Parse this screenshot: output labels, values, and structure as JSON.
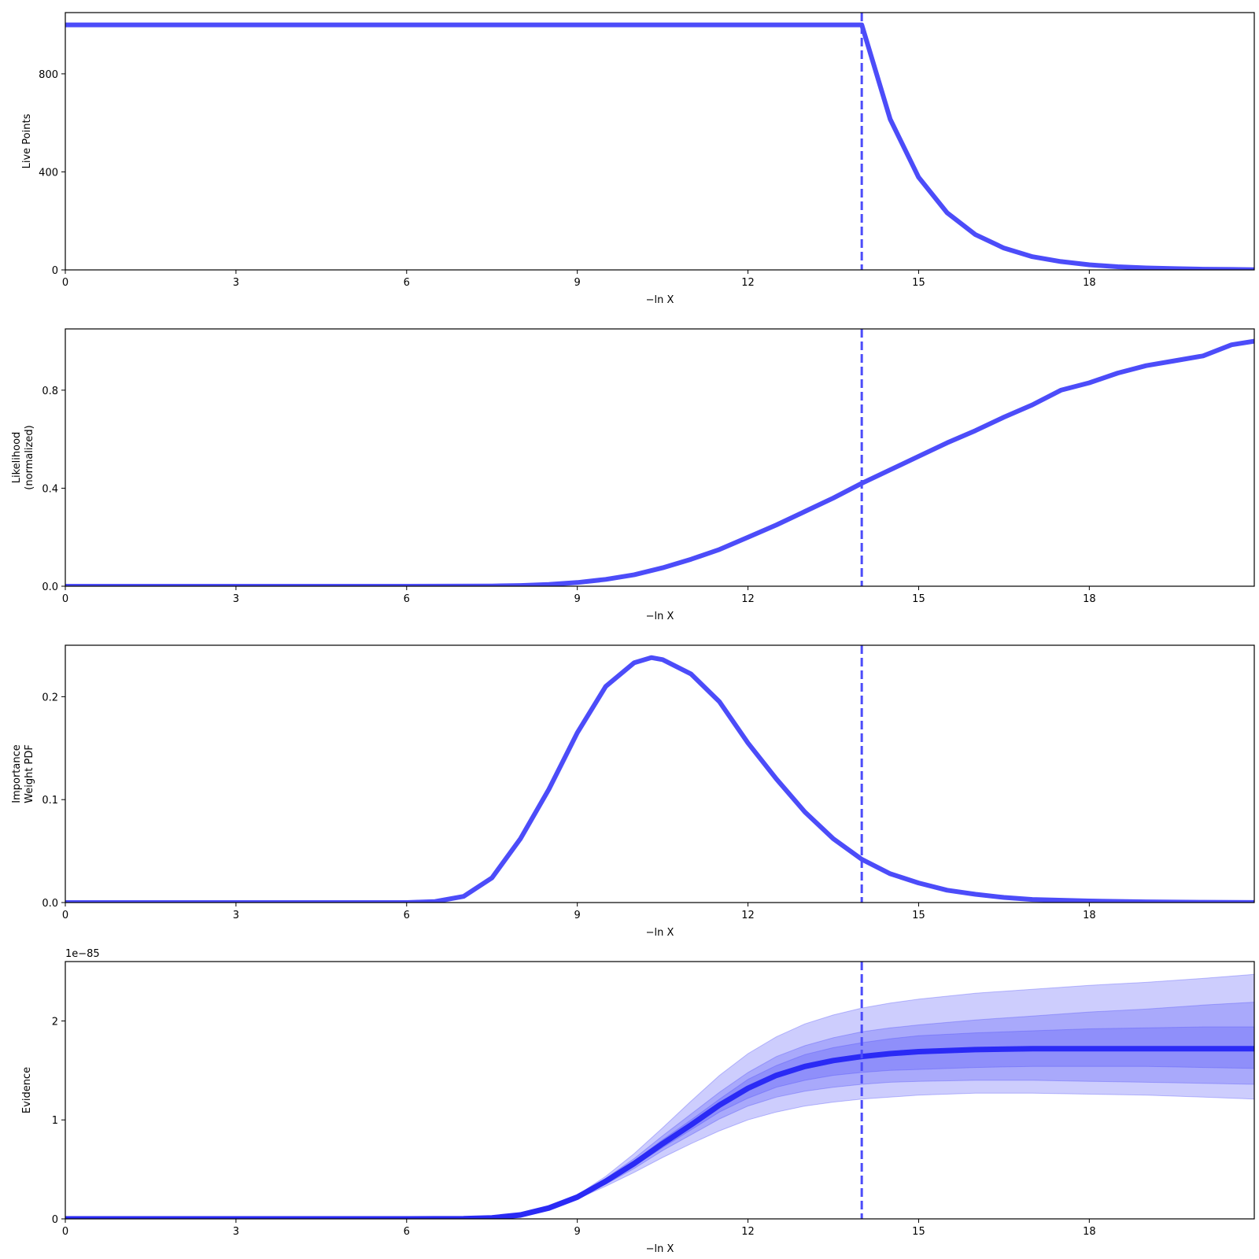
{
  "colors": {
    "line": "#4c4cf9",
    "evidence_line": "#2a2af5",
    "band": "#4c4cf9",
    "axis": "#000000"
  },
  "chart_data": [
    {
      "type": "line",
      "name": "panel-live-points",
      "xlabel": "−ln X",
      "ylabel": [
        "Live Points"
      ],
      "xlim": [
        0,
        20.9
      ],
      "ylim": [
        0,
        1050
      ],
      "xticks": [
        0,
        3,
        6,
        9,
        12,
        15,
        18
      ],
      "yticks": [
        0,
        400,
        800
      ],
      "yticklabels": [
        "0",
        "400",
        "800"
      ],
      "vline": 14.0,
      "series": [
        {
          "x": [
            0,
            14.0,
            14.0,
            14.5,
            15.0,
            15.5,
            16.0,
            16.5,
            17.0,
            17.5,
            18.0,
            18.5,
            19.0,
            19.5,
            20.0,
            20.5,
            20.9
          ],
          "y": [
            1000,
            1000,
            1000,
            615,
            378,
            233,
            144,
            89,
            54,
            34,
            21,
            13,
            8,
            5,
            3,
            2,
            1
          ]
        }
      ]
    },
    {
      "type": "line",
      "name": "panel-likelihood",
      "xlabel": "−ln X",
      "ylabel": [
        "Likelihood",
        "(normalized)"
      ],
      "xlim": [
        0,
        20.9
      ],
      "ylim": [
        0,
        1.05
      ],
      "xticks": [
        0,
        3,
        6,
        9,
        12,
        15,
        18
      ],
      "yticks": [
        0,
        0.4,
        0.8
      ],
      "yticklabels": [
        "0.0",
        "0.4",
        "0.8"
      ],
      "vline": 14.0,
      "series": [
        {
          "x": [
            0,
            6,
            7.5,
            8,
            8.5,
            9,
            9.5,
            10,
            10.5,
            11,
            11.5,
            12,
            12.5,
            13,
            13.5,
            14,
            14.5,
            15,
            15.5,
            16,
            16.5,
            17,
            17.5,
            18,
            18.5,
            19,
            19.5,
            20,
            20.5,
            20.9
          ],
          "y": [
            0,
            0,
            0.001,
            0.003,
            0.007,
            0.015,
            0.028,
            0.047,
            0.075,
            0.11,
            0.15,
            0.2,
            0.25,
            0.305,
            0.36,
            0.42,
            0.475,
            0.53,
            0.585,
            0.635,
            0.69,
            0.74,
            0.8,
            0.83,
            0.87,
            0.9,
            0.92,
            0.94,
            0.985,
            1.0
          ]
        }
      ]
    },
    {
      "type": "line",
      "name": "panel-importance-weight",
      "xlabel": "−ln X",
      "ylabel": [
        "Importance",
        "Weight PDF"
      ],
      "xlim": [
        0,
        20.9
      ],
      "ylim": [
        0,
        0.25
      ],
      "xticks": [
        0,
        3,
        6,
        9,
        12,
        15,
        18
      ],
      "yticks": [
        0,
        0.1,
        0.2
      ],
      "yticklabels": [
        "0.0",
        "0.1",
        "0.2"
      ],
      "vline": 14.0,
      "series": [
        {
          "x": [
            0,
            6,
            6.5,
            7,
            7.5,
            8,
            8.5,
            9,
            9.5,
            10,
            10.3,
            10.5,
            11,
            11.5,
            12,
            12.5,
            13,
            13.5,
            14,
            14.5,
            15,
            15.5,
            16,
            16.5,
            17,
            18,
            19,
            20,
            20.9
          ],
          "y": [
            0,
            0,
            0.001,
            0.006,
            0.024,
            0.062,
            0.11,
            0.165,
            0.21,
            0.233,
            0.238,
            0.236,
            0.222,
            0.195,
            0.155,
            0.12,
            0.088,
            0.062,
            0.042,
            0.028,
            0.019,
            0.012,
            0.008,
            0.005,
            0.003,
            0.0015,
            0.0007,
            0.0003,
            0.0001
          ]
        }
      ]
    },
    {
      "type": "area",
      "name": "panel-evidence",
      "xlabel": "−ln X",
      "ylabel": [
        "Evidence"
      ],
      "offset_text": "1e−85",
      "xlim": [
        0,
        20.9
      ],
      "ylim": [
        0,
        2.6
      ],
      "xticks": [
        0,
        3,
        6,
        9,
        12,
        15,
        18
      ],
      "yticks": [
        0,
        1,
        2
      ],
      "yticklabels": [
        "0",
        "1",
        "2"
      ],
      "vline": 14.0,
      "series": [
        {
          "x": [
            0,
            6,
            7,
            7.5,
            8,
            8.5,
            9,
            9.5,
            10,
            10.5,
            11,
            11.5,
            12,
            12.5,
            13,
            13.5,
            14,
            14.5,
            15,
            16,
            17,
            18,
            19,
            20,
            20.9
          ],
          "y": [
            0,
            0,
            0.002,
            0.01,
            0.04,
            0.11,
            0.22,
            0.38,
            0.56,
            0.76,
            0.95,
            1.15,
            1.32,
            1.45,
            1.54,
            1.6,
            1.64,
            1.67,
            1.69,
            1.71,
            1.72,
            1.72,
            1.72,
            1.72,
            1.72
          ]
        }
      ],
      "bands": [
        {
          "lower": [
            0,
            0,
            0.002,
            0.01,
            0.038,
            0.1,
            0.2,
            0.33,
            0.47,
            0.62,
            0.76,
            0.89,
            1.0,
            1.08,
            1.14,
            1.18,
            1.21,
            1.23,
            1.25,
            1.27,
            1.27,
            1.26,
            1.25,
            1.23,
            1.21
          ],
          "upper": [
            0,
            0,
            0.002,
            0.01,
            0.042,
            0.12,
            0.24,
            0.43,
            0.66,
            0.92,
            1.19,
            1.45,
            1.67,
            1.84,
            1.97,
            2.06,
            2.13,
            2.18,
            2.22,
            2.28,
            2.32,
            2.36,
            2.39,
            2.43,
            2.47
          ]
        },
        {
          "lower": [
            0,
            0,
            0.002,
            0.01,
            0.039,
            0.105,
            0.21,
            0.35,
            0.51,
            0.69,
            0.85,
            1.01,
            1.14,
            1.23,
            1.29,
            1.33,
            1.36,
            1.38,
            1.39,
            1.4,
            1.4,
            1.39,
            1.38,
            1.37,
            1.36
          ],
          "upper": [
            0,
            0,
            0.002,
            0.01,
            0.041,
            0.115,
            0.23,
            0.41,
            0.61,
            0.84,
            1.06,
            1.28,
            1.48,
            1.64,
            1.75,
            1.83,
            1.89,
            1.93,
            1.96,
            2.01,
            2.05,
            2.09,
            2.12,
            2.16,
            2.19
          ]
        },
        {
          "lower": [
            0,
            0,
            0.002,
            0.01,
            0.039,
            0.107,
            0.215,
            0.365,
            0.535,
            0.72,
            0.9,
            1.08,
            1.22,
            1.33,
            1.4,
            1.45,
            1.48,
            1.5,
            1.51,
            1.53,
            1.54,
            1.54,
            1.54,
            1.53,
            1.52
          ],
          "upper": [
            0,
            0,
            0.002,
            0.01,
            0.041,
            0.113,
            0.225,
            0.395,
            0.585,
            0.8,
            1.0,
            1.21,
            1.41,
            1.55,
            1.66,
            1.73,
            1.78,
            1.82,
            1.85,
            1.88,
            1.9,
            1.92,
            1.93,
            1.94,
            1.94
          ]
        }
      ]
    }
  ]
}
